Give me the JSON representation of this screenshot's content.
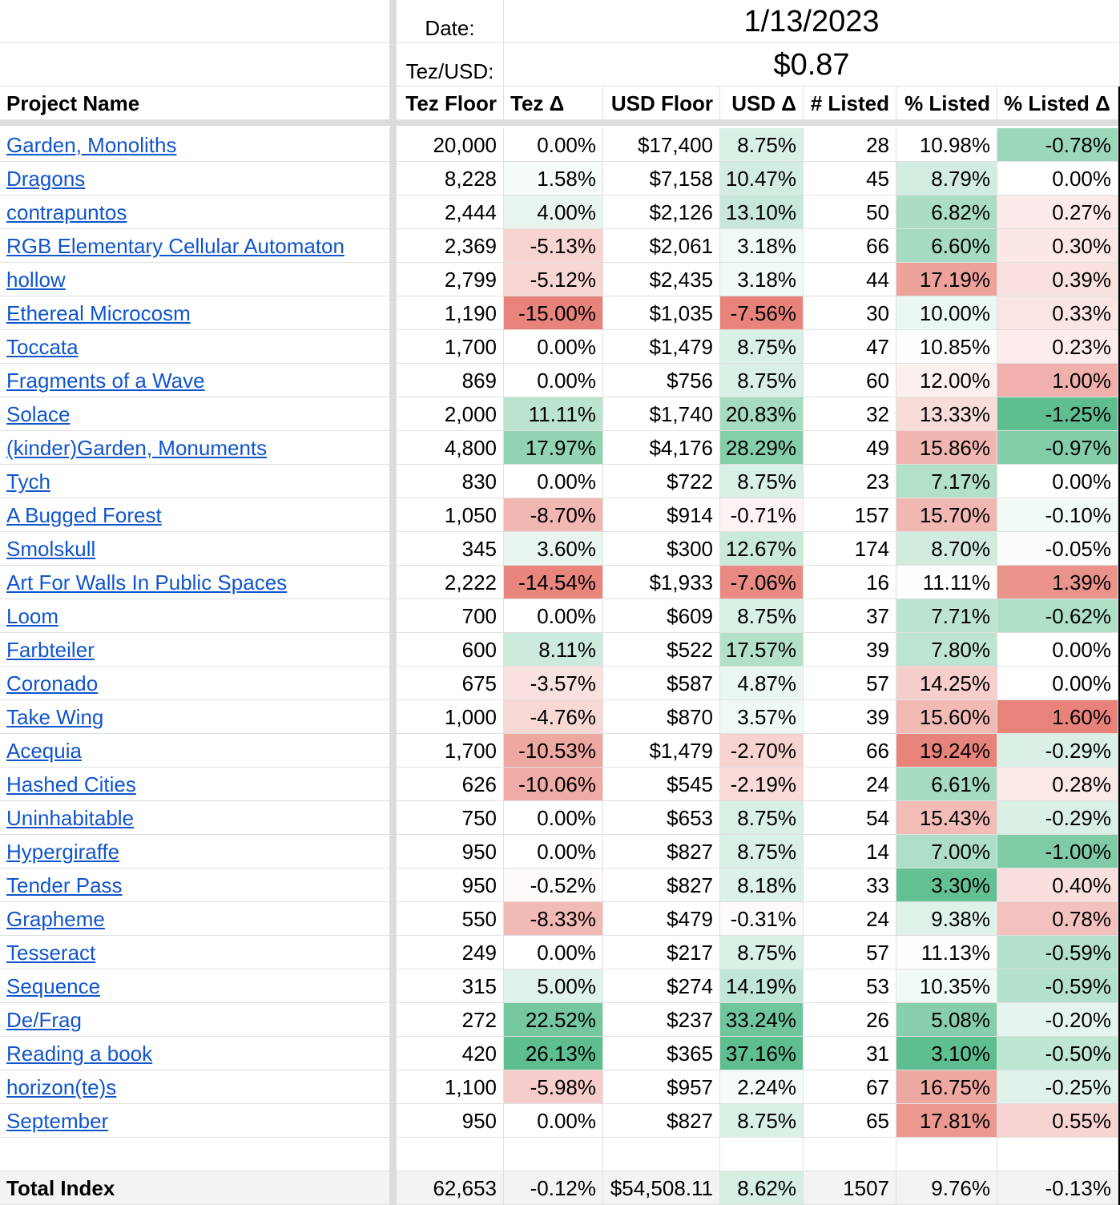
{
  "meta": {
    "date_label": "Date:",
    "date_value": "1/13/2023",
    "rate_label": "Tez/USD:",
    "rate_value": "$0.87"
  },
  "headers": [
    "Project Name",
    "Tez Floor",
    "Tez Δ",
    "USD Floor",
    "USD Δ",
    "# Listed",
    "% Listed",
    "% Listed Δ"
  ],
  "rows": [
    [
      "Garden, Monoliths",
      "20,000",
      "0.00%",
      "$17,400",
      "8.75%",
      "28",
      "10.98%",
      "-0.78%"
    ],
    [
      "Dragons",
      "8,228",
      "1.58%",
      "$7,158",
      "10.47%",
      "45",
      "8.79%",
      "0.00%"
    ],
    [
      "contrapuntos",
      "2,444",
      "4.00%",
      "$2,126",
      "13.10%",
      "50",
      "6.82%",
      "0.27%"
    ],
    [
      "RGB Elementary Cellular Automaton",
      "2,369",
      "-5.13%",
      "$2,061",
      "3.18%",
      "66",
      "6.60%",
      "0.30%"
    ],
    [
      "hollow",
      "2,799",
      "-5.12%",
      "$2,435",
      "3.18%",
      "44",
      "17.19%",
      "0.39%"
    ],
    [
      "Ethereal Microcosm",
      "1,190",
      "-15.00%",
      "$1,035",
      "-7.56%",
      "30",
      "10.00%",
      "0.33%"
    ],
    [
      "Toccata",
      "1,700",
      "0.00%",
      "$1,479",
      "8.75%",
      "47",
      "10.85%",
      "0.23%"
    ],
    [
      "Fragments of a Wave",
      "869",
      "0.00%",
      "$756",
      "8.75%",
      "60",
      "12.00%",
      "1.00%"
    ],
    [
      "Solace",
      "2,000",
      "11.11%",
      "$1,740",
      "20.83%",
      "32",
      "13.33%",
      "-1.25%"
    ],
    [
      "(kinder)Garden, Monuments",
      "4,800",
      "17.97%",
      "$4,176",
      "28.29%",
      "49",
      "15.86%",
      "-0.97%"
    ],
    [
      "Tych",
      "830",
      "0.00%",
      "$722",
      "8.75%",
      "23",
      "7.17%",
      "0.00%"
    ],
    [
      "A Bugged Forest",
      "1,050",
      "-8.70%",
      "$914",
      "-0.71%",
      "157",
      "15.70%",
      "-0.10%"
    ],
    [
      "Smolskull",
      "345",
      "3.60%",
      "$300",
      "12.67%",
      "174",
      "8.70%",
      "-0.05%"
    ],
    [
      "Art For Walls In Public Spaces",
      "2,222",
      "-14.54%",
      "$1,933",
      "-7.06%",
      "16",
      "11.11%",
      "1.39%"
    ],
    [
      "Loom",
      "700",
      "0.00%",
      "$609",
      "8.75%",
      "37",
      "7.71%",
      "-0.62%"
    ],
    [
      "Farbteiler",
      "600",
      "8.11%",
      "$522",
      "17.57%",
      "39",
      "7.80%",
      "0.00%"
    ],
    [
      "Coronado",
      "675",
      "-3.57%",
      "$587",
      "4.87%",
      "57",
      "14.25%",
      "0.00%"
    ],
    [
      "Take Wing",
      "1,000",
      "-4.76%",
      "$870",
      "3.57%",
      "39",
      "15.60%",
      "1.60%"
    ],
    [
      "Acequia",
      "1,700",
      "-10.53%",
      "$1,479",
      "-2.70%",
      "66",
      "19.24%",
      "-0.29%"
    ],
    [
      "Hashed Cities",
      "626",
      "-10.06%",
      "$545",
      "-2.19%",
      "24",
      "6.61%",
      "0.28%"
    ],
    [
      "Uninhabitable",
      "750",
      "0.00%",
      "$653",
      "8.75%",
      "54",
      "15.43%",
      "-0.29%"
    ],
    [
      "Hypergiraffe",
      "950",
      "0.00%",
      "$827",
      "8.75%",
      "14",
      "7.00%",
      "-1.00%"
    ],
    [
      "Tender Pass",
      "950",
      "-0.52%",
      "$827",
      "8.18%",
      "33",
      "3.30%",
      "0.40%"
    ],
    [
      "Grapheme",
      "550",
      "-8.33%",
      "$479",
      "-0.31%",
      "24",
      "9.38%",
      "0.78%"
    ],
    [
      "Tesseract",
      "249",
      "0.00%",
      "$217",
      "8.75%",
      "57",
      "11.13%",
      "-0.59%"
    ],
    [
      "Sequence",
      "315",
      "5.00%",
      "$274",
      "14.19%",
      "53",
      "10.35%",
      "-0.59%"
    ],
    [
      "De/Frag",
      "272",
      "22.52%",
      "$237",
      "33.24%",
      "26",
      "5.08%",
      "-0.20%"
    ],
    [
      "Reading a book",
      "420",
      "26.13%",
      "$365",
      "37.16%",
      "31",
      "3.10%",
      "-0.50%"
    ],
    [
      "horizon(te)s",
      "1,100",
      "-5.98%",
      "$957",
      "2.24%",
      "67",
      "16.75%",
      "-0.25%"
    ],
    [
      "September",
      "950",
      "0.00%",
      "$827",
      "8.75%",
      "65",
      "17.81%",
      "0.55%"
    ]
  ],
  "total": [
    "Total Index",
    "62,653",
    "-0.12%",
    "$54,508.11",
    "8.62%",
    "1507",
    "9.76%",
    "-0.13%"
  ],
  "colors": {
    "link": "#1155cc",
    "green_max": "#57bb8a",
    "red_max": "#e67c73",
    "white": "#ffffff"
  }
}
